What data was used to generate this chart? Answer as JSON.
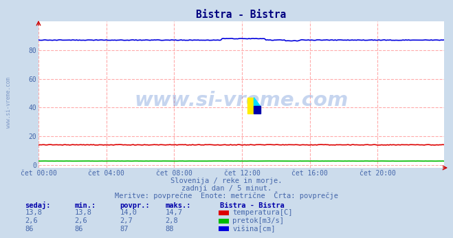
{
  "title": "Bistra - Bistra",
  "title_color": "#000080",
  "bg_color": "#ccdcec",
  "plot_bg_color": "#ffffff",
  "grid_color": "#ffaaaa",
  "ylabel_vals": [
    0,
    20,
    40,
    60,
    80
  ],
  "ylim": [
    -2,
    100
  ],
  "xlim": [
    0,
    287
  ],
  "xtick_labels": [
    "čet 00:00",
    "čet 04:00",
    "čet 08:00",
    "čet 12:00",
    "čet 16:00",
    "čet 20:00"
  ],
  "xtick_positions": [
    0,
    48,
    96,
    144,
    192,
    240
  ],
  "temp_color": "#dd0000",
  "pretok_color": "#00bb00",
  "visina_color": "#0000dd",
  "watermark": "www.si-vreme.com",
  "watermark_color": "#4477cc",
  "watermark_alpha": 0.3,
  "subtitle1": "Slovenija / reke in morje.",
  "subtitle2": "zadnji dan / 5 minut.",
  "subtitle3": "Meritve: povprečne  Enote: metrične  Črta: povprečje",
  "text_color": "#4466aa",
  "table_header_color": "#0000aa",
  "left_label": "www.si-vreme.com",
  "left_label_color": "#4466aa",
  "headers": [
    "sedaj:",
    "min.:",
    "povpr.:",
    "maks.:",
    "Bistra - Bistra"
  ],
  "rows": [
    [
      "13,8",
      "13,8",
      "14,0",
      "14,7",
      "temperatura[C]"
    ],
    [
      "2,6",
      "2,6",
      "2,7",
      "2,8",
      "pretok[m3/s]"
    ],
    [
      "86",
      "86",
      "87",
      "88",
      "višina[cm]"
    ]
  ],
  "row_colors": [
    "#dd0000",
    "#00bb00",
    "#0000dd"
  ],
  "temp_base": 14.0,
  "pretok_base": 2.7,
  "visina_base": 87.0
}
